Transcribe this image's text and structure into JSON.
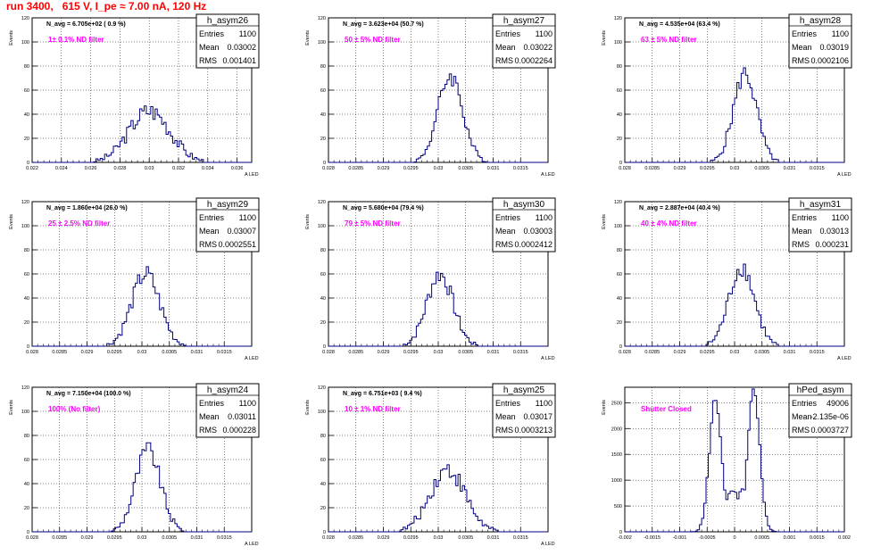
{
  "page": {
    "title": "run 3400,   615 V, I_pe ≈ 7.00 nA, 120 Hz"
  },
  "colors": {
    "hist": "#000080",
    "title": "#ff0000",
    "annotation": "#ff00ff",
    "axis": "#000000"
  },
  "stats_labels": {
    "entries": "Entries",
    "mean": "Mean",
    "rms": "RMS"
  },
  "chart_data": [
    {
      "type": "histogram",
      "name": "h_asym26",
      "ylabel": "Events",
      "xlabel": "A_LED",
      "xlim": [
        0.022,
        0.037
      ],
      "ylim": [
        0,
        120
      ],
      "xticks": [
        0.022,
        0.024,
        0.026,
        0.028,
        0.03,
        0.032,
        0.034,
        0.036
      ],
      "xtick_labels": [
        "0.022",
        "0.024",
        "0.026",
        "0.028",
        "0.03",
        "0.032",
        "0.034",
        "0.036"
      ],
      "yticks": [
        0,
        20,
        40,
        60,
        80,
        100,
        120
      ],
      "ytick_labels": [
        "0",
        "20",
        "40",
        "60",
        "80",
        "100",
        "120"
      ],
      "navg": "N_avg = 6.705e+02 ( 0.9 %)",
      "note": "1± 0.1% ND filter",
      "entries": "1100",
      "mean": "0.03002",
      "rms": "0.001401",
      "shape": {
        "peaks": [
          {
            "mu": 0.03002,
            "sigma": 0.0014,
            "amp": 43
          }
        ],
        "noise": 8
      }
    },
    {
      "type": "histogram",
      "name": "h_asym27",
      "ylabel": "Events",
      "xlabel": "A_LED",
      "xlim": [
        0.028,
        0.032
      ],
      "ylim": [
        0,
        120
      ],
      "xticks": [
        0.028,
        0.0285,
        0.029,
        0.0295,
        0.03,
        0.0305,
        0.031,
        0.0315
      ],
      "xtick_labels": [
        "0.028",
        "0.0285",
        "0.029",
        "0.0295",
        "0.03",
        "0.0305",
        "0.031",
        "0.0315"
      ],
      "yticks": [
        0,
        20,
        40,
        60,
        80,
        100,
        120
      ],
      "ytick_labels": [
        "0",
        "20",
        "40",
        "60",
        "80",
        "100",
        "120"
      ],
      "navg": "N_avg = 3.623e+04 (50.7 %)",
      "note": "50 ± 5% ND filter",
      "entries": "1100",
      "mean": "0.03022",
      "rms": "0.0002264",
      "shape": {
        "peaks": [
          {
            "mu": 0.03022,
            "sigma": 0.000226,
            "amp": 72
          }
        ],
        "noise": 8
      }
    },
    {
      "type": "histogram",
      "name": "h_asym28",
      "ylabel": "Events",
      "xlabel": "A_LED",
      "xlim": [
        0.028,
        0.032
      ],
      "ylim": [
        0,
        120
      ],
      "xticks": [
        0.028,
        0.0285,
        0.029,
        0.0295,
        0.03,
        0.0305,
        0.031,
        0.0315
      ],
      "xtick_labels": [
        "0.028",
        "0.0285",
        "0.029",
        "0.0295",
        "0.03",
        "0.0305",
        "0.031",
        "0.0315"
      ],
      "yticks": [
        0,
        20,
        40,
        60,
        80,
        100,
        120
      ],
      "ytick_labels": [
        "0",
        "20",
        "40",
        "60",
        "80",
        "100",
        "120"
      ],
      "navg": "N_avg = 4.535e+04 (63.4 %)",
      "note": "63 ± 5% ND filter",
      "entries": "1100",
      "mean": "0.03019",
      "rms": "0.0002106",
      "shape": {
        "peaks": [
          {
            "mu": 0.03019,
            "sigma": 0.00021,
            "amp": 74
          }
        ],
        "noise": 8
      }
    },
    {
      "type": "histogram",
      "name": "h_asym29",
      "ylabel": "Events",
      "xlabel": "A_LED",
      "xlim": [
        0.028,
        0.032
      ],
      "ylim": [
        0,
        120
      ],
      "xticks": [
        0.028,
        0.0285,
        0.029,
        0.0295,
        0.03,
        0.0305,
        0.031,
        0.0315
      ],
      "xtick_labels": [
        "0.028",
        "0.0285",
        "0.029",
        "0.0295",
        "0.03",
        "0.0305",
        "0.031",
        "0.0315"
      ],
      "yticks": [
        0,
        20,
        40,
        60,
        80,
        100,
        120
      ],
      "ytick_labels": [
        "0",
        "20",
        "40",
        "60",
        "80",
        "100",
        "120"
      ],
      "navg": "N_avg = 1.860e+04 (26.0 %)",
      "note": "25 ± 2.5% ND filter",
      "entries": "1100",
      "mean": "0.03007",
      "rms": "0.0002551",
      "shape": {
        "peaks": [
          {
            "mu": 0.03007,
            "sigma": 0.000255,
            "amp": 60
          }
        ],
        "noise": 8
      }
    },
    {
      "type": "histogram",
      "name": "h_asym30",
      "ylabel": "Events",
      "xlabel": "A_LED",
      "xlim": [
        0.028,
        0.032
      ],
      "ylim": [
        0,
        120
      ],
      "xticks": [
        0.028,
        0.0285,
        0.029,
        0.0295,
        0.03,
        0.0305,
        0.031,
        0.0315
      ],
      "xtick_labels": [
        "0.028",
        "0.0285",
        "0.029",
        "0.0295",
        "0.03",
        "0.0305",
        "0.031",
        "0.0315"
      ],
      "yticks": [
        0,
        20,
        40,
        60,
        80,
        100,
        120
      ],
      "ytick_labels": [
        "0",
        "20",
        "40",
        "60",
        "80",
        "100",
        "120"
      ],
      "navg": "N_avg = 5.680e+04 (79.4 %)",
      "note": "79 ± 5% ND filter",
      "entries": "1100",
      "mean": "0.03003",
      "rms": "0.0002412",
      "shape": {
        "peaks": [
          {
            "mu": 0.03003,
            "sigma": 0.00024,
            "amp": 60
          }
        ],
        "noise": 8
      }
    },
    {
      "type": "histogram",
      "name": "h_asym31",
      "ylabel": "Events",
      "xlabel": "A_LED",
      "xlim": [
        0.028,
        0.032
      ],
      "ylim": [
        0,
        120
      ],
      "xticks": [
        0.028,
        0.0285,
        0.029,
        0.0295,
        0.03,
        0.0305,
        0.031,
        0.0315
      ],
      "xtick_labels": [
        "0.028",
        "0.0285",
        "0.029",
        "0.0295",
        "0.03",
        "0.0305",
        "0.031",
        "0.0315"
      ],
      "yticks": [
        0,
        20,
        40,
        60,
        80,
        100,
        120
      ],
      "ytick_labels": [
        "0",
        "20",
        "40",
        "60",
        "80",
        "100",
        "120"
      ],
      "navg": "N_avg = 2.887e+04 (40.4 %)",
      "note": "40 ± 4% ND filter",
      "entries": "1100",
      "mean": "0.03013",
      "rms": "0.000231",
      "shape": {
        "peaks": [
          {
            "mu": 0.03013,
            "sigma": 0.000231,
            "amp": 66
          }
        ],
        "noise": 8
      }
    },
    {
      "type": "histogram",
      "name": "h_asym24",
      "ylabel": "Events",
      "xlabel": "A_LED",
      "xlim": [
        0.028,
        0.032
      ],
      "ylim": [
        0,
        120
      ],
      "xticks": [
        0.028,
        0.0285,
        0.029,
        0.0295,
        0.03,
        0.0305,
        0.031,
        0.0315
      ],
      "xtick_labels": [
        "0.028",
        "0.0285",
        "0.029",
        "0.0295",
        "0.03",
        "0.0305",
        "0.031",
        "0.0315"
      ],
      "yticks": [
        0,
        20,
        40,
        60,
        80,
        100,
        120
      ],
      "ytick_labels": [
        "0",
        "20",
        "40",
        "60",
        "80",
        "100",
        "120"
      ],
      "navg": "N_avg = 7.150e+04 (100.0 %)",
      "note": "100% (No filter)",
      "entries": "1100",
      "mean": "0.03011",
      "rms": "0.000228",
      "shape": {
        "peaks": [
          {
            "mu": 0.03011,
            "sigma": 0.000228,
            "amp": 68
          }
        ],
        "noise": 8
      }
    },
    {
      "type": "histogram",
      "name": "h_asym25",
      "ylabel": "Events",
      "xlabel": "A_LED",
      "xlim": [
        0.028,
        0.032
      ],
      "ylim": [
        0,
        120
      ],
      "xticks": [
        0.028,
        0.0285,
        0.029,
        0.0295,
        0.03,
        0.0305,
        0.031,
        0.0315
      ],
      "xtick_labels": [
        "0.028",
        "0.0285",
        "0.029",
        "0.0295",
        "0.03",
        "0.0305",
        "0.031",
        "0.0315"
      ],
      "yticks": [
        0,
        20,
        40,
        60,
        80,
        100,
        120
      ],
      "ytick_labels": [
        "0",
        "20",
        "40",
        "60",
        "80",
        "100",
        "120"
      ],
      "navg": "N_avg = 6.751e+03 ( 9.4 %)",
      "note": "10 ± 1% ND filter",
      "entries": "1100",
      "mean": "0.03017",
      "rms": "0.0003213",
      "shape": {
        "peaks": [
          {
            "mu": 0.03017,
            "sigma": 0.00032,
            "amp": 52
          }
        ],
        "noise": 8
      }
    },
    {
      "type": "histogram",
      "name": "hPed_asym",
      "ylabel": "Events",
      "xlabel": "",
      "xlim": [
        -0.002,
        0.002
      ],
      "ylim": [
        0,
        2800
      ],
      "xticks": [
        -0.002,
        -0.0015,
        -0.001,
        -0.0005,
        0,
        0.0005,
        0.001,
        0.0015,
        0.002
      ],
      "xtick_labels": [
        "-0.002",
        "-0.0015",
        "-0.001",
        "-0.0005",
        "0",
        "0.0005",
        "0.001",
        "0.0015",
        "0.002"
      ],
      "yticks": [
        0,
        500,
        1000,
        1500,
        2000,
        2500
      ],
      "ytick_labels": [
        "0",
        "500",
        "1000",
        "1500",
        "2000",
        "2500"
      ],
      "navg": "",
      "note": "Shutter Closed",
      "entries": "49006",
      "mean": "-2.135e-06",
      "rms": "0.0003727",
      "shape": {
        "peaks": [
          {
            "mu": -0.00035,
            "sigma": 0.00011,
            "amp": 2550
          },
          {
            "mu": 0.00035,
            "sigma": 0.00011,
            "amp": 2700
          }
        ],
        "floor": 750,
        "noise": 120
      }
    }
  ]
}
